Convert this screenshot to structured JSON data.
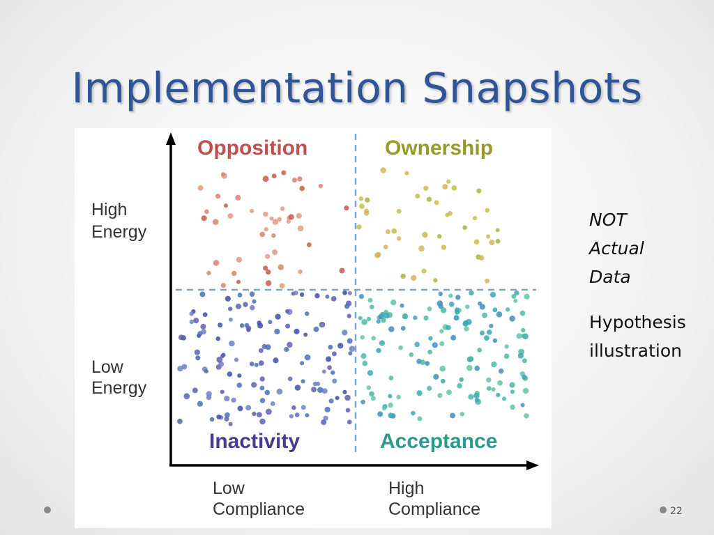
{
  "slide": {
    "title": "Implementation Snapshots",
    "page_number": "22"
  },
  "quadrants": {
    "top_left": "Opposition",
    "top_right": "Ownership",
    "bottom_left": "Inactivity",
    "bottom_right": "Acceptance"
  },
  "axes": {
    "y_high": [
      "High",
      "Energy"
    ],
    "y_low": [
      "Low",
      "Energy"
    ],
    "x_low": [
      "Low",
      "Compliance"
    ],
    "x_high": [
      "High",
      "Compliance"
    ]
  },
  "note": {
    "italic_lines": [
      "NOT",
      "Actual",
      "Data"
    ],
    "plain_lines": [
      "Hypothesis",
      "illustration"
    ]
  },
  "colors": {
    "title": "#2f5597",
    "opposition": "#c0504d",
    "ownership": "#9a9a2a",
    "inactivity": "#4b3b8f",
    "acceptance": "#2a9a8a",
    "divider": "#7fa6c9"
  }
}
